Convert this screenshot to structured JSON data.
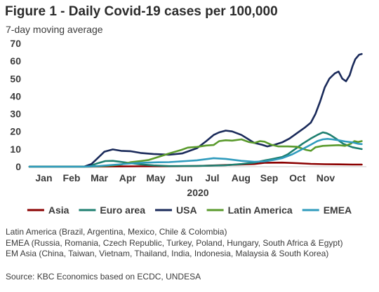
{
  "title": "Figure 1 - Daily Covid-19 cases per 100,000",
  "subtitle": "7-day moving average",
  "notes": [
    "Latin America (Brazil, Argentina, Mexico, Chile & Colombia)",
    "EMEA (Russia, Romania, Czech Republic, Turkey, Poland, Hungary, South Africa & Egypt)",
    "EM Asia (China, Taiwan, Vietnam, Thailand, India, Indonesia, Malaysia & South Korea)"
  ],
  "source": "Source: KBC Economics based on ECDC, UNDESA",
  "chart_data": {
    "type": "line",
    "title": "Figure 1 - Daily Covid-19 cases per 100,000",
    "subtitle": "7-day moving average",
    "xlabel": "2020",
    "ylabel": "",
    "x_unit": "day_of_2020",
    "xlim": [
      1,
      365
    ],
    "ylim": [
      0,
      70
    ],
    "yticks": [
      0,
      10,
      20,
      30,
      40,
      50,
      60,
      70
    ],
    "month_labels": [
      "Jan",
      "Feb",
      "Mar",
      "Apr",
      "May",
      "Jun",
      "Jul",
      "Aug",
      "Sep",
      "Oct",
      "Nov"
    ],
    "year_label": "2020",
    "legend_position": "bottom",
    "grid": false,
    "series": [
      {
        "name": "Asia",
        "color": "#8b0000",
        "x": [
          1,
          60,
          91,
          121,
          152,
          182,
          213,
          244,
          255,
          274,
          290,
          305,
          320,
          335,
          350,
          360
        ],
        "y": [
          0,
          0,
          0.1,
          0.2,
          0.2,
          0.4,
          0.9,
          1.5,
          2.2,
          2.3,
          2.0,
          1.6,
          1.4,
          1.3,
          1.2,
          1.2
        ]
      },
      {
        "name": "Euro area",
        "color": "#1e7f70",
        "x": [
          1,
          60,
          67,
          75,
          83,
          91,
          100,
          110,
          121,
          135,
          152,
          182,
          213,
          230,
          244,
          255,
          265,
          274,
          280,
          288,
          296,
          305,
          312,
          318,
          322,
          326,
          332,
          340,
          350,
          360
        ],
        "y": [
          0,
          0,
          0.5,
          2.0,
          3.2,
          3.3,
          2.7,
          2.0,
          1.3,
          0.7,
          0.3,
          0.4,
          0.8,
          1.5,
          2.3,
          3.5,
          4.5,
          5.5,
          7.0,
          10.0,
          13.0,
          16.0,
          18.0,
          19.5,
          19.0,
          18.0,
          16.0,
          13.0,
          11.0,
          10.0
        ]
      },
      {
        "name": "USA",
        "color": "#1a2a5a",
        "x": [
          1,
          60,
          68,
          75,
          82,
          91,
          100,
          110,
          121,
          135,
          152,
          166,
          182,
          192,
          200,
          206,
          213,
          220,
          230,
          244,
          252,
          258,
          266,
          274,
          282,
          290,
          298,
          305,
          310,
          315,
          320,
          325,
          328,
          331,
          335,
          339,
          343,
          347,
          350,
          353,
          357,
          360
        ],
        "y": [
          0,
          0,
          1.5,
          5.0,
          8.5,
          9.8,
          9.0,
          8.8,
          7.8,
          7.2,
          6.8,
          7.5,
          10.5,
          14.5,
          18.0,
          19.5,
          20.5,
          20.0,
          18.0,
          13.5,
          12.5,
          11.5,
          12.5,
          13.8,
          16.0,
          19.0,
          22.0,
          25.0,
          30.0,
          37.0,
          45.0,
          50.0,
          51.5,
          53.0,
          54.0,
          50.0,
          48.5,
          52.0,
          57.0,
          61.0,
          63.5,
          64.0
        ]
      },
      {
        "name": "Latin America",
        "color": "#5a9a2c",
        "x": [
          1,
          60,
          70,
          80,
          91,
          100,
          110,
          121,
          130,
          140,
          152,
          165,
          172,
          182,
          192,
          200,
          206,
          213,
          220,
          230,
          238,
          244,
          250,
          255,
          262,
          270,
          280,
          290,
          300,
          305,
          310,
          318,
          326,
          335,
          342,
          348,
          352,
          356,
          360
        ],
        "y": [
          0,
          0,
          0.1,
          0.3,
          0.7,
          1.2,
          2.5,
          3.2,
          3.8,
          5.5,
          7.5,
          9.5,
          10.8,
          11.2,
          12.0,
          12.3,
          14.5,
          15.0,
          14.8,
          15.5,
          14.0,
          13.5,
          14.5,
          14.2,
          12.5,
          11.5,
          11.5,
          11.3,
          9.5,
          9.0,
          11.0,
          11.8,
          12.0,
          12.2,
          11.8,
          13.0,
          14.5,
          14.0,
          14.5
        ]
      },
      {
        "name": "EMEA",
        "color": "#2f9bbd",
        "x": [
          1,
          60,
          75,
          91,
          110,
          121,
          140,
          152,
          170,
          182,
          200,
          213,
          230,
          244,
          255,
          265,
          274,
          285,
          296,
          305,
          312,
          318,
          323,
          328,
          335,
          342,
          350,
          356,
          360
        ],
        "y": [
          0,
          0,
          0.3,
          1.0,
          1.8,
          2.2,
          2.5,
          2.6,
          3.2,
          3.6,
          4.8,
          4.4,
          3.3,
          2.8,
          3.0,
          3.8,
          4.8,
          7.0,
          10.0,
          12.5,
          14.5,
          15.5,
          15.8,
          15.5,
          15.0,
          14.3,
          13.8,
          13.0,
          12.8
        ]
      }
    ]
  }
}
